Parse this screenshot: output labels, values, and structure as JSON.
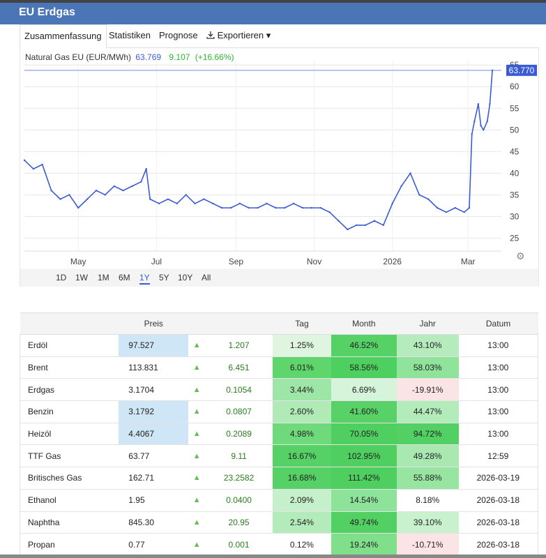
{
  "app": {
    "title": "EU Erdgas"
  },
  "tabs": [
    {
      "label": "Zusammenfassung",
      "active": true
    },
    {
      "label": "Statistiken"
    },
    {
      "label": "Prognose"
    },
    {
      "label": "Exportieren ▾",
      "icon": "download-icon"
    }
  ],
  "legend": {
    "name": "Natural Gas EU (EUR/MWh)",
    "price": "63.769",
    "change": "9.107",
    "pct": "(+16.66%)"
  },
  "ranges": {
    "items": [
      "1D",
      "1W",
      "1M",
      "6M",
      "1Y",
      "5Y",
      "10Y",
      "All"
    ],
    "active": "1Y"
  },
  "colors": {
    "header": "#4a76b8",
    "line": "#3b5bd6",
    "up": "#2fb52f",
    "badge": "#3b5bd6"
  },
  "chart_data": {
    "type": "line",
    "series": [
      {
        "name": "Natural Gas EU (EUR/MWh)",
        "x": [
          "2025-03-20",
          "2025-03-27",
          "2025-04-03",
          "2025-04-10",
          "2025-04-17",
          "2025-04-24",
          "2025-05-01",
          "2025-05-08",
          "2025-05-15",
          "2025-05-22",
          "2025-05-29",
          "2025-06-05",
          "2025-06-12",
          "2025-06-19",
          "2025-06-23",
          "2025-06-26",
          "2025-07-03",
          "2025-07-10",
          "2025-07-17",
          "2025-07-24",
          "2025-07-31",
          "2025-08-07",
          "2025-08-14",
          "2025-08-21",
          "2025-08-28",
          "2025-09-04",
          "2025-09-11",
          "2025-09-18",
          "2025-09-25",
          "2025-10-02",
          "2025-10-09",
          "2025-10-16",
          "2025-10-23",
          "2025-10-30",
          "2025-11-06",
          "2025-11-13",
          "2025-11-20",
          "2025-11-27",
          "2025-12-04",
          "2025-12-11",
          "2025-12-18",
          "2025-12-25",
          "2026-01-01",
          "2026-01-08",
          "2026-01-15",
          "2026-01-22",
          "2026-01-29",
          "2026-02-05",
          "2026-02-12",
          "2026-02-19",
          "2026-02-26",
          "2026-03-02",
          "2026-03-04",
          "2026-03-06",
          "2026-03-09",
          "2026-03-11",
          "2026-03-13",
          "2026-03-16",
          "2026-03-18",
          "2026-03-20"
        ],
        "y": [
          43,
          41,
          42,
          36,
          34,
          35,
          32,
          34,
          36,
          35,
          37,
          36,
          37,
          38,
          41,
          34,
          33,
          34,
          33,
          35,
          33,
          34,
          33,
          32,
          32,
          33,
          32,
          32,
          33,
          32,
          32,
          33,
          32,
          32,
          32,
          31,
          29,
          27,
          28,
          28,
          29,
          28,
          33,
          37,
          40,
          35,
          34,
          32,
          31,
          32,
          31,
          32,
          49,
          52,
          56,
          51,
          50,
          52,
          56,
          63.77
        ]
      }
    ],
    "x_ticks": [
      "May",
      "Jul",
      "Sep",
      "Nov",
      "2026",
      "Mar"
    ],
    "y_ticks": [
      25,
      30,
      35,
      40,
      45,
      50,
      55,
      60,
      65
    ],
    "ylim": [
      22,
      66
    ],
    "xlim": [
      "2025-03-20",
      "2026-03-27"
    ],
    "last_value_label": "63.770",
    "grid": true
  },
  "table": {
    "headers": [
      "",
      "Preis",
      "",
      "",
      "Tag",
      "Month",
      "Jahr",
      "Datum"
    ],
    "rows": [
      {
        "name": "Erdöl",
        "price": "97.527",
        "hl": true,
        "change": "1.207",
        "day": "1.25%",
        "month": "46.52%",
        "year": "43.10%",
        "date": "13:00",
        "dayc": "#dff5df",
        "monthc": "#55d165",
        "yearc": "#b6ecbd"
      },
      {
        "name": "Brent",
        "price": "113.831",
        "hl": false,
        "change": "6.451",
        "day": "6.01%",
        "month": "58.56%",
        "year": "58.03%",
        "date": "13:00",
        "dayc": "#5ed66b",
        "monthc": "#4ed060",
        "yearc": "#8fe39b"
      },
      {
        "name": "Erdgas",
        "price": "3.1704",
        "hl": false,
        "change": "0.1054",
        "day": "3.44%",
        "month": "6.69%",
        "year": "-19.91%",
        "date": "13:00",
        "dayc": "#9de6a7",
        "monthc": "#d6f4da",
        "yearc": "#fbe4e6"
      },
      {
        "name": "Benzin",
        "price": "3.1792",
        "hl": true,
        "change": "0.0807",
        "day": "2.60%",
        "month": "41.60%",
        "year": "44.47%",
        "date": "13:00",
        "dayc": "#afeab7",
        "monthc": "#58d267",
        "yearc": "#b3ebba"
      },
      {
        "name": "Heizöl",
        "price": "4.4067",
        "hl": true,
        "change": "0.2089",
        "day": "4.98%",
        "month": "70.05%",
        "year": "94.72%",
        "date": "13:00",
        "dayc": "#6fda7b",
        "monthc": "#4ecf5f",
        "yearc": "#52d063"
      },
      {
        "name": "TTF Gas",
        "price": "63.77",
        "hl": false,
        "change": "9.11",
        "day": "16.67%",
        "month": "102.95%",
        "year": "49.28%",
        "date": "12:59",
        "dayc": "#55d165",
        "monthc": "#4ecf5f",
        "yearc": "#a9e9b1"
      },
      {
        "name": "Britisches Gas",
        "price": "162.71",
        "hl": false,
        "change": "23.2582",
        "day": "16.68%",
        "month": "111.42%",
        "year": "55.88%",
        "date": "2026-03-19",
        "dayc": "#55d165",
        "monthc": "#4ecf5f",
        "yearc": "#98e5a2"
      },
      {
        "name": "Ethanol",
        "price": "1.95",
        "hl": false,
        "change": "0.0400",
        "day": "2.09%",
        "month": "14.54%",
        "year": "8.18%",
        "date": "2026-03-18",
        "dayc": "#c5f0cb",
        "monthc": "#8ee39a",
        "yearc": "#ffffff"
      },
      {
        "name": "Naphtha",
        "price": "845.30",
        "hl": false,
        "change": "20.95",
        "day": "2.54%",
        "month": "49.74%",
        "year": "39.10%",
        "date": "2026-03-18",
        "dayc": "#b4ebbb",
        "monthc": "#52d063",
        "yearc": "#c9f1ce"
      },
      {
        "name": "Propan",
        "price": "0.77",
        "hl": false,
        "change": "0.001",
        "day": "0.12%",
        "month": "19.24%",
        "year": "-10.71%",
        "date": "2026-03-18",
        "dayc": "#ffffff",
        "monthc": "#7fdf8b",
        "yearc": "#fbe4e6"
      }
    ]
  }
}
